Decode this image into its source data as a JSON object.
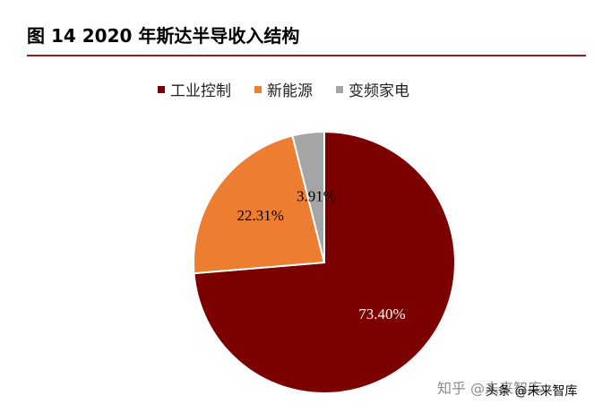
{
  "header": {
    "title": "图 14 2020 年斯达半导收入结构"
  },
  "watermark": {
    "text": "知乎 @未来智库",
    "overlay": "头条 @未来智库"
  },
  "chart_data": {
    "type": "pie",
    "title": "",
    "legend_position": "top",
    "series": [
      {
        "name": "工业控制",
        "value": 73.4,
        "label": "73.40%",
        "color": "#7b0000"
      },
      {
        "name": "新能源",
        "value": 22.31,
        "label": "22.31%",
        "color": "#ed7d31"
      },
      {
        "name": "变频家电",
        "value": 3.91,
        "label": "3.91%",
        "color": "#a5a5a5"
      }
    ]
  }
}
